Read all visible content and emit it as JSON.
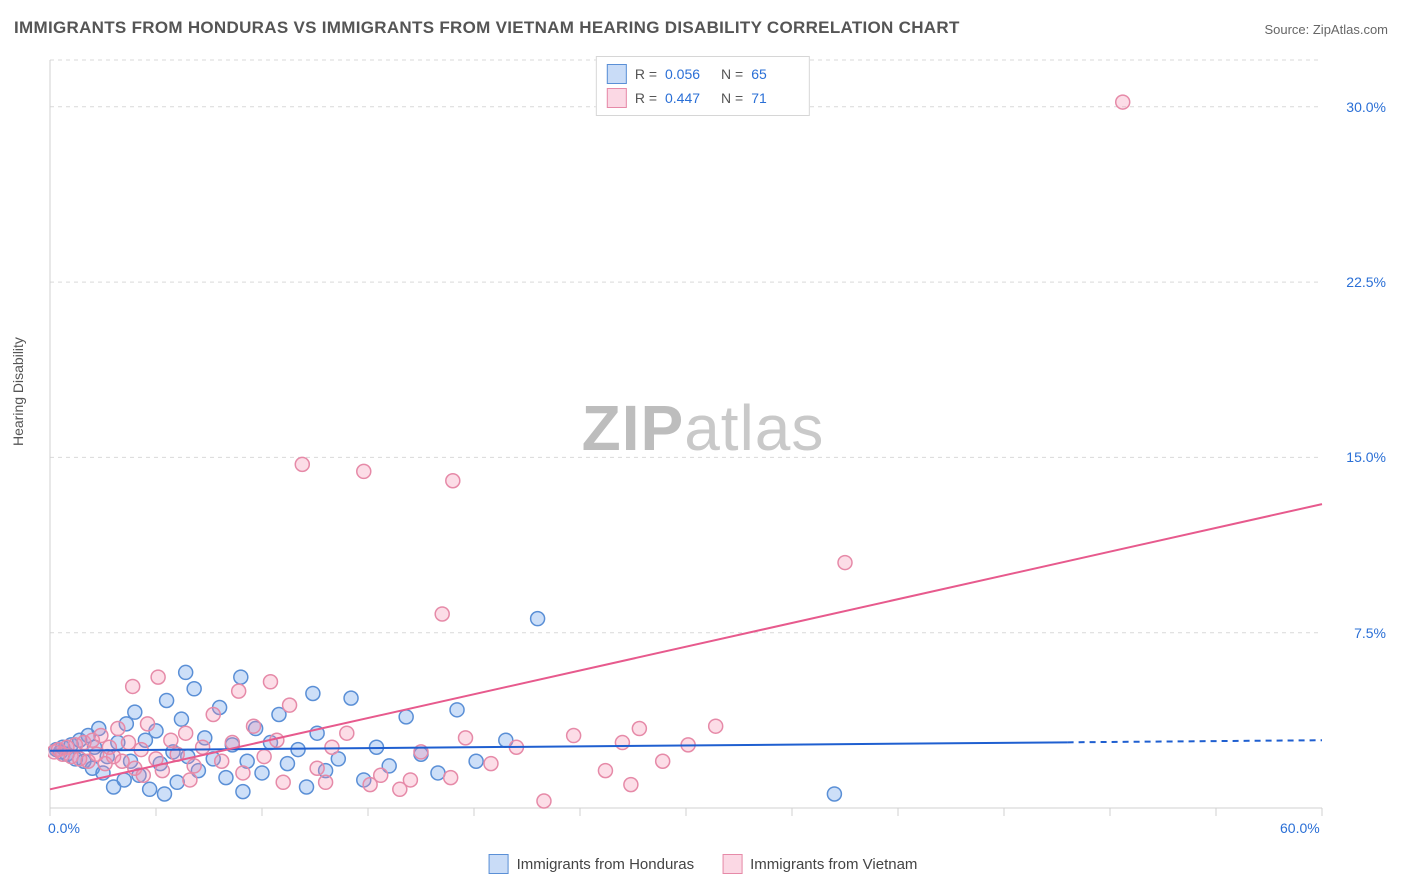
{
  "title": "IMMIGRANTS FROM HONDURAS VS IMMIGRANTS FROM VIETNAM HEARING DISABILITY CORRELATION CHART",
  "source": "Source: ZipAtlas.com",
  "ylabel": "Hearing Disability",
  "watermark_a": "ZIP",
  "watermark_b": "atlas",
  "chart": {
    "type": "scatter",
    "xlim": [
      0,
      60
    ],
    "ylim": [
      0,
      32
    ],
    "x_ticks": [
      0,
      60
    ],
    "x_tick_labels": [
      "0.0%",
      "60.0%"
    ],
    "y_ticks": [
      7.5,
      15.0,
      22.5,
      30.0
    ],
    "y_tick_labels": [
      "7.5%",
      "15.0%",
      "22.5%",
      "30.0%"
    ],
    "grid_color": "#d9d9d9",
    "grid_dash": "4,4",
    "axis_color": "#d0d0d0",
    "background_color": "#ffffff",
    "label_color": "#2a6fd6",
    "series": [
      {
        "key": "honduras",
        "label": "Immigrants from Honduras",
        "color_fill": "rgba(99,155,233,0.32)",
        "color_stroke": "#5a8fd6",
        "r_stat": "0.056",
        "n_stat": "65",
        "trend": {
          "x1": 0,
          "y1": 2.45,
          "x2": 60,
          "y2": 2.9,
          "color": "#1f5fd0",
          "solid_until_x": 48
        },
        "points": [
          [
            0.3,
            2.5
          ],
          [
            0.5,
            2.4
          ],
          [
            0.6,
            2.6
          ],
          [
            0.8,
            2.3
          ],
          [
            1.0,
            2.7
          ],
          [
            1.2,
            2.1
          ],
          [
            1.4,
            2.9
          ],
          [
            1.6,
            2.0
          ],
          [
            1.8,
            3.1
          ],
          [
            2.0,
            1.7
          ],
          [
            2.1,
            2.6
          ],
          [
            2.3,
            3.4
          ],
          [
            2.5,
            1.5
          ],
          [
            2.7,
            2.2
          ],
          [
            3.0,
            0.9
          ],
          [
            3.2,
            2.8
          ],
          [
            3.5,
            1.2
          ],
          [
            3.6,
            3.6
          ],
          [
            3.8,
            2.0
          ],
          [
            4.0,
            4.1
          ],
          [
            4.2,
            1.4
          ],
          [
            4.5,
            2.9
          ],
          [
            4.7,
            0.8
          ],
          [
            5.0,
            3.3
          ],
          [
            5.2,
            1.9
          ],
          [
            5.5,
            4.6
          ],
          [
            5.8,
            2.4
          ],
          [
            6.0,
            1.1
          ],
          [
            6.2,
            3.8
          ],
          [
            6.5,
            2.2
          ],
          [
            6.8,
            5.1
          ],
          [
            7.0,
            1.6
          ],
          [
            7.3,
            3.0
          ],
          [
            7.7,
            2.1
          ],
          [
            8.0,
            4.3
          ],
          [
            8.3,
            1.3
          ],
          [
            8.6,
            2.7
          ],
          [
            9.0,
            5.6
          ],
          [
            9.3,
            2.0
          ],
          [
            9.7,
            3.4
          ],
          [
            10.0,
            1.5
          ],
          [
            10.4,
            2.8
          ],
          [
            10.8,
            4.0
          ],
          [
            11.2,
            1.9
          ],
          [
            11.7,
            2.5
          ],
          [
            12.1,
            0.9
          ],
          [
            12.6,
            3.2
          ],
          [
            13.0,
            1.6
          ],
          [
            13.6,
            2.1
          ],
          [
            14.2,
            4.7
          ],
          [
            14.8,
            1.2
          ],
          [
            15.4,
            2.6
          ],
          [
            16.0,
            1.8
          ],
          [
            16.8,
            3.9
          ],
          [
            17.5,
            2.3
          ],
          [
            18.3,
            1.5
          ],
          [
            19.2,
            4.2
          ],
          [
            20.1,
            2.0
          ],
          [
            21.5,
            2.9
          ],
          [
            23.0,
            8.1
          ],
          [
            37.0,
            0.6
          ],
          [
            5.4,
            0.6
          ],
          [
            9.1,
            0.7
          ],
          [
            12.4,
            4.9
          ],
          [
            6.4,
            5.8
          ]
        ]
      },
      {
        "key": "vietnam",
        "label": "Immigrants from Vietnam",
        "color_fill": "rgba(244,143,177,0.30)",
        "color_stroke": "#e68aa8",
        "r_stat": "0.447",
        "n_stat": "71",
        "trend": {
          "x1": 0,
          "y1": 0.8,
          "x2": 60,
          "y2": 13.0,
          "color": "#e75a8d",
          "solid_until_x": 60
        },
        "points": [
          [
            0.2,
            2.4
          ],
          [
            0.4,
            2.5
          ],
          [
            0.6,
            2.3
          ],
          [
            0.8,
            2.6
          ],
          [
            1.0,
            2.2
          ],
          [
            1.2,
            2.7
          ],
          [
            1.4,
            2.1
          ],
          [
            1.6,
            2.8
          ],
          [
            1.8,
            2.0
          ],
          [
            2.0,
            2.9
          ],
          [
            2.2,
            2.3
          ],
          [
            2.4,
            3.1
          ],
          [
            2.6,
            1.9
          ],
          [
            2.8,
            2.6
          ],
          [
            3.0,
            2.2
          ],
          [
            3.2,
            3.4
          ],
          [
            3.4,
            2.0
          ],
          [
            3.7,
            2.8
          ],
          [
            4.0,
            1.7
          ],
          [
            4.3,
            2.5
          ],
          [
            4.6,
            3.6
          ],
          [
            5.0,
            2.1
          ],
          [
            5.3,
            1.6
          ],
          [
            5.7,
            2.9
          ],
          [
            6.0,
            2.3
          ],
          [
            6.4,
            3.2
          ],
          [
            6.8,
            1.8
          ],
          [
            7.2,
            2.6
          ],
          [
            7.7,
            4.0
          ],
          [
            8.1,
            2.0
          ],
          [
            8.6,
            2.8
          ],
          [
            9.1,
            1.5
          ],
          [
            9.6,
            3.5
          ],
          [
            10.1,
            2.2
          ],
          [
            10.7,
            2.9
          ],
          [
            11.3,
            4.4
          ],
          [
            11.9,
            14.7
          ],
          [
            12.6,
            1.7
          ],
          [
            13.3,
            2.6
          ],
          [
            14.0,
            3.2
          ],
          [
            14.8,
            14.4
          ],
          [
            15.6,
            1.4
          ],
          [
            16.5,
            0.8
          ],
          [
            17.5,
            2.4
          ],
          [
            18.5,
            8.3
          ],
          [
            19.0,
            14.0
          ],
          [
            19.6,
            3.0
          ],
          [
            20.8,
            1.9
          ],
          [
            22.0,
            2.6
          ],
          [
            23.3,
            0.3
          ],
          [
            24.7,
            3.1
          ],
          [
            26.2,
            1.6
          ],
          [
            27.0,
            2.8
          ],
          [
            27.4,
            1.0
          ],
          [
            27.8,
            3.4
          ],
          [
            28.9,
            2.0
          ],
          [
            30.1,
            2.7
          ],
          [
            31.4,
            3.5
          ],
          [
            37.5,
            10.5
          ],
          [
            50.6,
            30.2
          ],
          [
            3.9,
            5.2
          ],
          [
            5.1,
            5.6
          ],
          [
            8.9,
            5.0
          ],
          [
            10.4,
            5.4
          ],
          [
            15.1,
            1.0
          ],
          [
            17.0,
            1.2
          ],
          [
            18.9,
            1.3
          ],
          [
            13.0,
            1.1
          ],
          [
            6.6,
            1.2
          ],
          [
            4.4,
            1.4
          ],
          [
            11.0,
            1.1
          ]
        ]
      }
    ],
    "marker_radius": 7,
    "marker_stroke_width": 1.5,
    "trend_line_width": 2
  },
  "legend_top": {
    "r_label": "R =",
    "n_label": "N ="
  },
  "swatch": {
    "honduras": {
      "fill": "rgba(99,155,233,0.35)",
      "stroke": "#5a8fd6"
    },
    "vietnam": {
      "fill": "rgba(244,143,177,0.35)",
      "stroke": "#e68aa8"
    }
  }
}
